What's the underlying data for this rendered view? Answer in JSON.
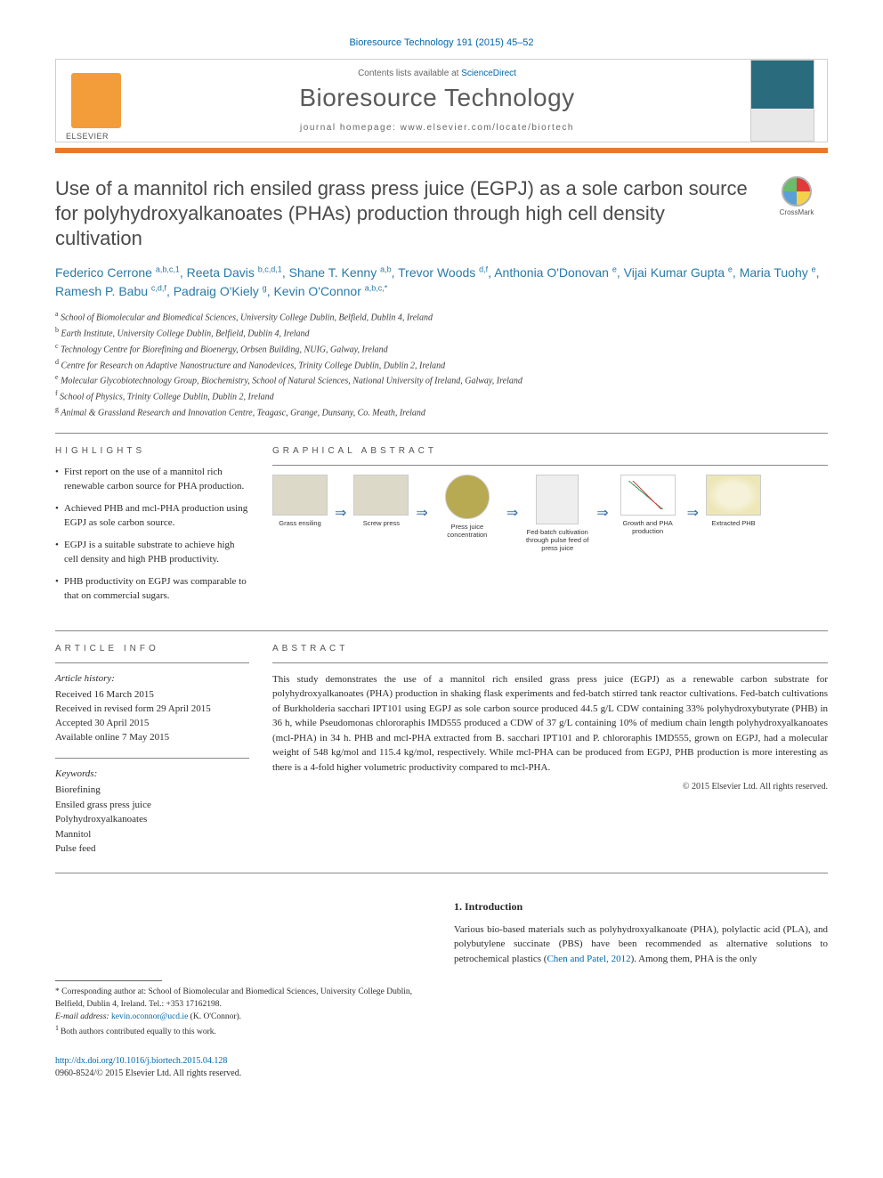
{
  "citation": "Bioresource Technology 191 (2015) 45–52",
  "header": {
    "contents_prefix": "Contents lists available at ",
    "contents_link": "ScienceDirect",
    "journal": "Bioresource Technology",
    "homepage_prefix": "journal homepage: ",
    "homepage": "www.elsevier.com/locate/biortech",
    "publisher": "ELSEVIER"
  },
  "crossmark_label": "CrossMark",
  "title": "Use of a mannitol rich ensiled grass press juice (EGPJ) as a sole carbon source for polyhydroxyalkanoates (PHAs) production through high cell density cultivation",
  "authors_html": "Federico Cerrone <sup>a,b,c,1</sup>, Reeta Davis <sup>b,c,d,1</sup>, Shane T. Kenny <sup>a,b</sup>, Trevor Woods <sup>d,f</sup>, Anthonia O'Donovan <sup>e</sup>, Vijai Kumar Gupta <sup>e</sup>, Maria Tuohy <sup>e</sup>, Ramesh P. Babu <sup>c,d,f</sup>, Padraig O'Kiely <sup>g</sup>, Kevin O'Connor <sup>a,b,c,*</sup>",
  "affiliations": [
    {
      "key": "a",
      "text": "School of Biomolecular and Biomedical Sciences, University College Dublin, Belfield, Dublin 4, Ireland"
    },
    {
      "key": "b",
      "text": "Earth Institute, University College Dublin, Belfield, Dublin 4, Ireland"
    },
    {
      "key": "c",
      "text": "Technology Centre for Biorefining and Bioenergy, Orbsen Building, NUIG, Galway, Ireland"
    },
    {
      "key": "d",
      "text": "Centre for Research on Adaptive Nanostructure and Nanodevices, Trinity College Dublin, Dublin 2, Ireland"
    },
    {
      "key": "e",
      "text": "Molecular Glycobiotechnology Group, Biochemistry, School of Natural Sciences, National University of Ireland, Galway, Ireland"
    },
    {
      "key": "f",
      "text": "School of Physics, Trinity College Dublin, Dublin 2, Ireland"
    },
    {
      "key": "g",
      "text": "Animal & Grassland Research and Innovation Centre, Teagasc, Grange, Dunsany, Co. Meath, Ireland"
    }
  ],
  "labels": {
    "highlights": "HIGHLIGHTS",
    "graphical_abstract": "GRAPHICAL ABSTRACT",
    "article_info": "ARTICLE INFO",
    "abstract": "ABSTRACT"
  },
  "highlights": [
    "First report on the use of a mannitol rich renewable carbon source for PHA production.",
    "Achieved PHB and mcl-PHA production using EGPJ as sole carbon source.",
    "EGPJ is a suitable substrate to achieve high cell density and high PHB productivity.",
    "PHB productivity on EGPJ was comparable to that on commercial sugars."
  ],
  "graphical_abstract": {
    "items": [
      {
        "caption": "Grass ensiling",
        "style": "field"
      },
      {
        "caption": "Screw press",
        "style": "press"
      },
      {
        "caption": "Press juice concentration",
        "style": "round"
      },
      {
        "caption": "Fed-batch cultivation through pulse feed of press juice",
        "style": "fermenter"
      },
      {
        "caption": "Growth and PHA production",
        "style": "chart"
      },
      {
        "caption": "Extracted PHB",
        "style": "phb"
      }
    ],
    "arrow": "⇒"
  },
  "article_info": {
    "history_label": "Article history:",
    "history": [
      "Received 16 March 2015",
      "Received in revised form 29 April 2015",
      "Accepted 30 April 2015",
      "Available online 7 May 2015"
    ],
    "keywords_label": "Keywords:",
    "keywords": [
      "Biorefining",
      "Ensiled grass press juice",
      "Polyhydroxyalkanoates",
      "Mannitol",
      "Pulse feed"
    ]
  },
  "abstract": "This study demonstrates the use of a mannitol rich ensiled grass press juice (EGPJ) as a renewable carbon substrate for polyhydroxyalkanoates (PHA) production in shaking flask experiments and fed-batch stirred tank reactor cultivations. Fed-batch cultivations of Burkholderia sacchari IPT101 using EGPJ as sole carbon source produced 44.5 g/L CDW containing 33% polyhydroxybutyrate (PHB) in 36 h, while Pseudomonas chlororaphis IMD555 produced a CDW of 37 g/L containing 10% of medium chain length polyhydroxyalkanoates (mcl-PHA) in 34 h. PHB and mcl-PHA extracted from B. sacchari IPT101 and P. chlororaphis IMD555, grown on EGPJ, had a molecular weight of 548 kg/mol and 115.4 kg/mol, respectively. While mcl-PHA can be produced from EGPJ, PHB production is more interesting as there is a 4-fold higher volumetric productivity compared to mcl-PHA.",
  "copyright": "© 2015 Elsevier Ltd. All rights reserved.",
  "footnotes": {
    "corr_label": "* ",
    "corr_text": "Corresponding author at: School of Biomolecular and Biomedical Sciences, University College Dublin, Belfield, Dublin 4, Ireland. Tel.: +353 17162198.",
    "email_label": "E-mail address: ",
    "email": "kevin.oconnor@ucd.ie",
    "email_suffix": " (K. O'Connor).",
    "equal_label": "1 ",
    "equal_text": "Both authors contributed equally to this work."
  },
  "intro": {
    "heading": "1. Introduction",
    "text_prefix": "Various bio-based materials such as polyhydroxyalkanoate (PHA), polylactic acid (PLA), and polybutylene succinate (PBS) have been recommended as alternative solutions to petrochemical plastics (",
    "ref": "Chen and Patel, 2012",
    "text_suffix": "). Among them, PHA is the only"
  },
  "doi": {
    "url": "http://dx.doi.org/10.1016/j.biortech.2015.04.128",
    "issn_line": "0960-8524/© 2015 Elsevier Ltd. All rights reserved."
  },
  "colors": {
    "accent_orange": "#e8792c",
    "link_blue": "#0066aa",
    "author_blue": "#2a7aa8",
    "text_gray": "#4a4a4a"
  }
}
